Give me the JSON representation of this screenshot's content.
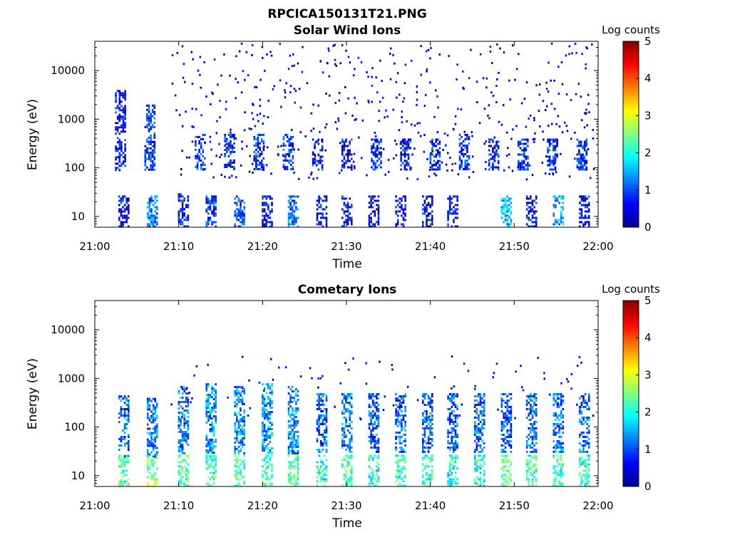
{
  "figure": {
    "title": "RPCICA150131T21.PNG"
  },
  "colorbar_label": "Log counts",
  "chart_data": [
    {
      "type": "heatmap",
      "title": "Solar Wind Ions",
      "xlabel": "Time",
      "ylabel": "Energy (eV)",
      "x_ticks": [
        "21:00",
        "21:10",
        "21:20",
        "21:30",
        "21:40",
        "21:50",
        "22:00"
      ],
      "x_range_minutes": [
        0,
        60
      ],
      "y_scale": "log",
      "y_ticks": [
        10,
        100,
        1000,
        10000
      ],
      "y_tick_labels": [
        "10",
        "100",
        "1000",
        "10000"
      ],
      "y_range_eV": [
        6,
        40000
      ],
      "colorbar": {
        "label": "Log counts",
        "range": [
          0,
          5
        ],
        "ticks": [
          "0",
          "1",
          "2",
          "3",
          "4",
          "5"
        ],
        "colormap": "jet"
      },
      "bursts_minutes": [
        {
          "t": 3.4,
          "lo": 6,
          "hi": 27,
          "level": 0.5
        },
        {
          "t": 6.8,
          "lo": 6,
          "hi": 27,
          "level": 1.2
        },
        {
          "t": 10.5,
          "lo": 6,
          "hi": 30,
          "level": 0.7
        },
        {
          "t": 13.8,
          "lo": 6,
          "hi": 27,
          "level": 0.8
        },
        {
          "t": 17.2,
          "lo": 6,
          "hi": 27,
          "level": 1.0
        },
        {
          "t": 20.5,
          "lo": 6,
          "hi": 27,
          "level": 0.6
        },
        {
          "t": 23.6,
          "lo": 6,
          "hi": 27,
          "level": 1.2
        },
        {
          "t": 27.0,
          "lo": 6,
          "hi": 27,
          "level": 0.6
        },
        {
          "t": 30.0,
          "lo": 6,
          "hi": 27,
          "level": 0.6
        },
        {
          "t": 33.2,
          "lo": 6,
          "hi": 27,
          "level": 0.6
        },
        {
          "t": 36.4,
          "lo": 6,
          "hi": 27,
          "level": 0.6
        },
        {
          "t": 39.6,
          "lo": 6,
          "hi": 27,
          "level": 0.6
        },
        {
          "t": 42.6,
          "lo": 6,
          "hi": 27,
          "level": 0.6
        },
        {
          "t": 49.0,
          "lo": 6,
          "hi": 27,
          "level": 1.6
        },
        {
          "t": 52.0,
          "lo": 6,
          "hi": 27,
          "level": 0.7
        },
        {
          "t": 55.2,
          "lo": 6,
          "hi": 27,
          "level": 1.4
        },
        {
          "t": 58.3,
          "lo": 6,
          "hi": 27,
          "level": 0.6
        },
        {
          "t": 3.0,
          "lo": 90,
          "hi": 4000,
          "level": 0.6
        },
        {
          "t": 6.5,
          "lo": 90,
          "hi": 2000,
          "level": 0.8
        },
        {
          "t": 12.5,
          "lo": 90,
          "hi": 500,
          "level": 0.9
        },
        {
          "t": 16.0,
          "lo": 90,
          "hi": 500,
          "level": 0.8
        },
        {
          "t": 19.5,
          "lo": 90,
          "hi": 500,
          "level": 0.8
        },
        {
          "t": 23.0,
          "lo": 90,
          "hi": 500,
          "level": 0.8
        },
        {
          "t": 26.5,
          "lo": 90,
          "hi": 400,
          "level": 0.7
        },
        {
          "t": 30.0,
          "lo": 90,
          "hi": 400,
          "level": 0.7
        },
        {
          "t": 33.5,
          "lo": 90,
          "hi": 400,
          "level": 0.8
        },
        {
          "t": 37.0,
          "lo": 90,
          "hi": 400,
          "level": 0.7
        },
        {
          "t": 40.5,
          "lo": 90,
          "hi": 400,
          "level": 0.7
        },
        {
          "t": 44.0,
          "lo": 90,
          "hi": 500,
          "level": 0.8
        },
        {
          "t": 47.5,
          "lo": 90,
          "hi": 400,
          "level": 0.8
        },
        {
          "t": 51.0,
          "lo": 90,
          "hi": 400,
          "level": 0.8
        },
        {
          "t": 54.5,
          "lo": 90,
          "hi": 400,
          "level": 0.8
        },
        {
          "t": 58.0,
          "lo": 90,
          "hi": 400,
          "level": 0.8
        }
      ]
    },
    {
      "type": "heatmap",
      "title": "Cometary Ions",
      "xlabel": "Time",
      "ylabel": "Energy (eV)",
      "x_ticks": [
        "21:00",
        "21:10",
        "21:20",
        "21:30",
        "21:40",
        "21:50",
        "22:00"
      ],
      "x_range_minutes": [
        0,
        60
      ],
      "y_scale": "log",
      "y_ticks": [
        10,
        100,
        1000,
        10000
      ],
      "y_tick_labels": [
        "10",
        "100",
        "1000",
        "10000"
      ],
      "y_range_eV": [
        6,
        40000
      ],
      "colorbar": {
        "label": "Log counts",
        "range": [
          0,
          5
        ],
        "ticks": [
          "0",
          "1",
          "2",
          "3",
          "4",
          "5"
        ],
        "colormap": "jet"
      },
      "bursts_minutes": [
        {
          "t": 3.4,
          "lo": 6,
          "hi": 27,
          "level": 2.3
        },
        {
          "t": 6.8,
          "lo": 6,
          "hi": 27,
          "level": 2.6
        },
        {
          "t": 10.5,
          "lo": 6,
          "hi": 27,
          "level": 2.3
        },
        {
          "t": 13.8,
          "lo": 6,
          "hi": 27,
          "level": 2.2
        },
        {
          "t": 17.2,
          "lo": 6,
          "hi": 27,
          "level": 2.3
        },
        {
          "t": 20.5,
          "lo": 6,
          "hi": 27,
          "level": 2.2
        },
        {
          "t": 23.6,
          "lo": 6,
          "hi": 27,
          "level": 2.2
        },
        {
          "t": 27.0,
          "lo": 6,
          "hi": 27,
          "level": 2.0
        },
        {
          "t": 30.0,
          "lo": 6,
          "hi": 27,
          "level": 2.2
        },
        {
          "t": 33.2,
          "lo": 6,
          "hi": 27,
          "level": 2.0
        },
        {
          "t": 36.4,
          "lo": 6,
          "hi": 27,
          "level": 2.2
        },
        {
          "t": 39.6,
          "lo": 6,
          "hi": 27,
          "level": 2.2
        },
        {
          "t": 42.6,
          "lo": 6,
          "hi": 27,
          "level": 2.0
        },
        {
          "t": 45.8,
          "lo": 6,
          "hi": 27,
          "level": 2.0
        },
        {
          "t": 49.0,
          "lo": 6,
          "hi": 27,
          "level": 2.4
        },
        {
          "t": 52.0,
          "lo": 6,
          "hi": 27,
          "level": 2.2
        },
        {
          "t": 55.2,
          "lo": 6,
          "hi": 27,
          "level": 2.2
        },
        {
          "t": 58.3,
          "lo": 6,
          "hi": 27,
          "level": 2.0
        },
        {
          "t": 3.4,
          "lo": 25,
          "hi": 450,
          "level": 1.1
        },
        {
          "t": 6.8,
          "lo": 25,
          "hi": 400,
          "level": 1.2
        },
        {
          "t": 10.5,
          "lo": 30,
          "hi": 700,
          "level": 1.2
        },
        {
          "t": 13.8,
          "lo": 30,
          "hi": 800,
          "level": 1.3
        },
        {
          "t": 17.2,
          "lo": 30,
          "hi": 700,
          "level": 1.3
        },
        {
          "t": 20.5,
          "lo": 30,
          "hi": 800,
          "level": 1.4
        },
        {
          "t": 23.6,
          "lo": 30,
          "hi": 700,
          "level": 1.3
        },
        {
          "t": 27.0,
          "lo": 30,
          "hi": 500,
          "level": 1.1
        },
        {
          "t": 30.0,
          "lo": 30,
          "hi": 500,
          "level": 1.2
        },
        {
          "t": 33.2,
          "lo": 30,
          "hi": 500,
          "level": 1.0
        },
        {
          "t": 36.4,
          "lo": 30,
          "hi": 500,
          "level": 1.1
        },
        {
          "t": 39.6,
          "lo": 30,
          "hi": 500,
          "level": 1.0
        },
        {
          "t": 42.6,
          "lo": 30,
          "hi": 500,
          "level": 1.1
        },
        {
          "t": 45.8,
          "lo": 30,
          "hi": 500,
          "level": 1.1
        },
        {
          "t": 49.0,
          "lo": 30,
          "hi": 500,
          "level": 1.0
        },
        {
          "t": 52.0,
          "lo": 30,
          "hi": 500,
          "level": 1.1
        },
        {
          "t": 55.2,
          "lo": 30,
          "hi": 500,
          "level": 1.2
        },
        {
          "t": 58.3,
          "lo": 30,
          "hi": 500,
          "level": 1.1
        }
      ]
    }
  ]
}
